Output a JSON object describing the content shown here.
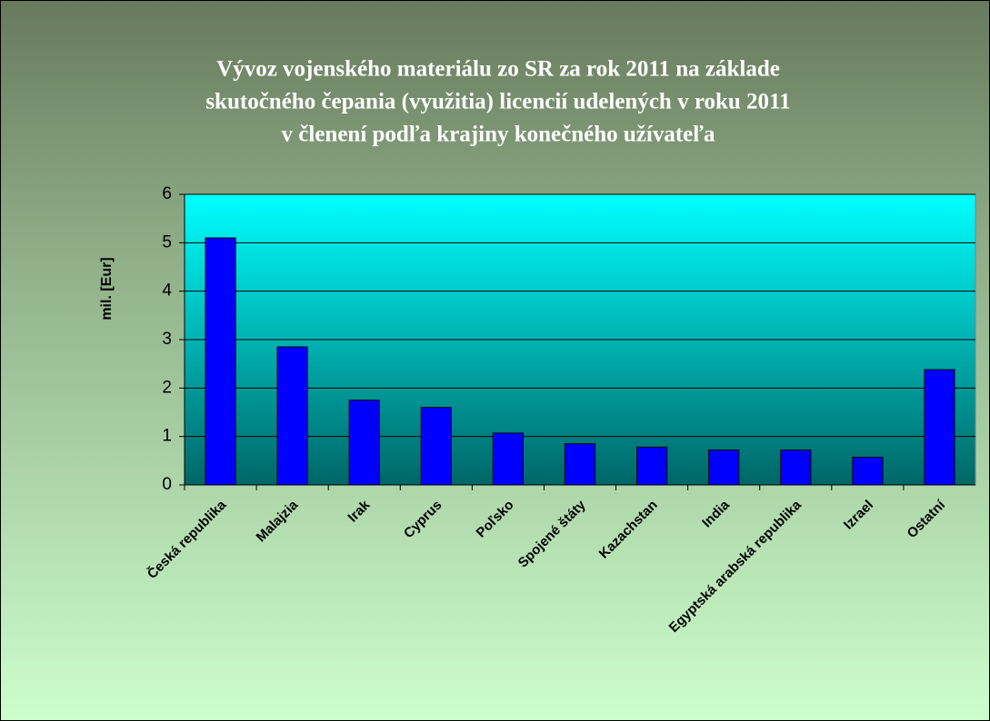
{
  "chart_data": {
    "type": "bar",
    "title": [
      "Vývoz vojenského materiálu zo SR za rok 2011 na základe",
      "skutočného čepania (využitia) licencií udelených v roku 2011",
      "v členení podľa krajiny konečného užívateľa"
    ],
    "ylabel": "mil. [Eur]",
    "categories": [
      "Česká republika",
      "Malajzia",
      "Irak",
      "Cyprus",
      "Poľsko",
      "Spojené štáty",
      "Kazachstan",
      "India",
      "Egyptská arabská republika",
      "Izrael",
      "Ostatní"
    ],
    "values": [
      5.1,
      2.85,
      1.75,
      1.6,
      1.07,
      0.85,
      0.78,
      0.72,
      0.72,
      0.57,
      2.38
    ],
    "color": "#0000ff",
    "ylim": [
      0,
      6
    ],
    "yticks": [
      0,
      1,
      2,
      3,
      4,
      5,
      6
    ],
    "grid": true
  }
}
